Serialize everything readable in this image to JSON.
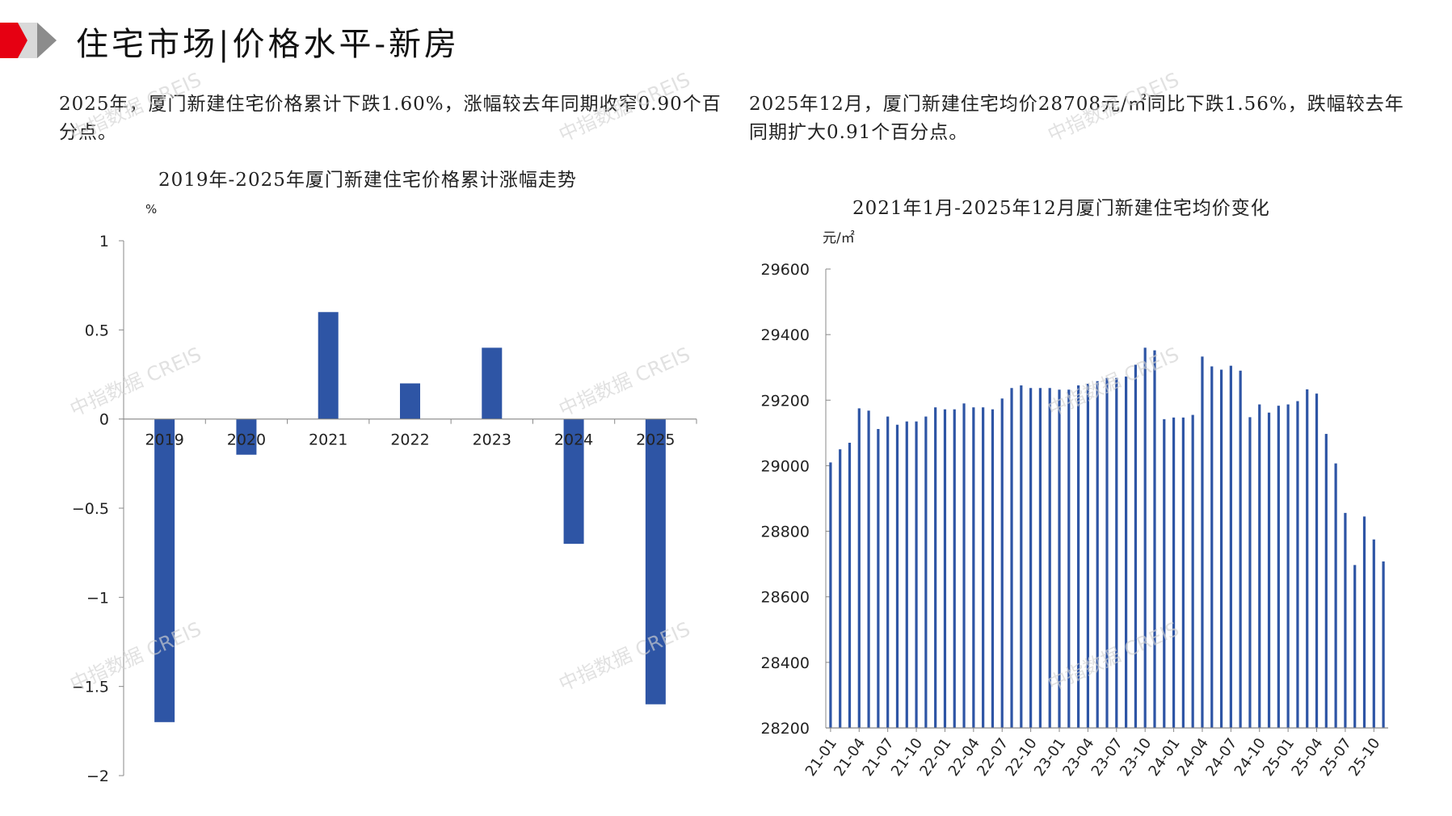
{
  "header": {
    "title": "住宅市场|价格水平-新房",
    "accent_color": "#e60012"
  },
  "paragraphs": {
    "left": "2025年，厦门新建住宅价格累计下跌1.60%，涨幅较去年同期收窄0.90个百分点。",
    "right": "2025年12月，厦门新建住宅均价28708元/㎡同比下跌1.56%，跌幅较去年同期扩大0.91个百分点。"
  },
  "watermark": "中指数据 CREIS",
  "chart_data": [
    {
      "type": "bar",
      "title": "2019年-2025年厦门新建住宅价格累计涨幅走势",
      "ylabel": "%",
      "categories": [
        "2019",
        "2020",
        "2021",
        "2022",
        "2023",
        "2024",
        "2025"
      ],
      "values": [
        -1.7,
        -0.2,
        0.6,
        0.2,
        0.4,
        -0.7,
        -1.6
      ],
      "ylim": [
        -2,
        1
      ],
      "yticks": [
        "1",
        "0.5",
        "0",
        "−0.5",
        "−1",
        "−1.5",
        "−2"
      ],
      "ytick_values": [
        1,
        0.5,
        0,
        -0.5,
        -1,
        -1.5,
        -2
      ],
      "color": "#2e55a5",
      "grid": false
    },
    {
      "type": "bar",
      "title": "2021年1月-2025年12月厦门新建住宅均价变化",
      "ylabel": "元/㎡",
      "ylim": [
        28200,
        29600
      ],
      "yticks": [
        "29600",
        "29400",
        "29200",
        "29000",
        "28800",
        "28600",
        "28400",
        "28200"
      ],
      "ytick_values": [
        29600,
        29400,
        29200,
        29000,
        28800,
        28600,
        28400,
        28200
      ],
      "xtick_labels": [
        "21-01",
        "21-04",
        "21-07",
        "21-10",
        "22-01",
        "22-04",
        "22-07",
        "22-10",
        "23-01",
        "23-04",
        "23-07",
        "23-10",
        "24-01",
        "24-04",
        "24-07",
        "24-10",
        "25-01",
        "25-04",
        "25-07",
        "25-10"
      ],
      "xtick_every": 3,
      "values": [
        29010,
        29050,
        29070,
        29175,
        29168,
        29112,
        29150,
        29125,
        29135,
        29135,
        29150,
        29178,
        29172,
        29172,
        29190,
        29178,
        29178,
        29172,
        29205,
        29237,
        29245,
        29237,
        29237,
        29237,
        29232,
        29232,
        29245,
        29250,
        29258,
        29268,
        29268,
        29272,
        29308,
        29360,
        29352,
        29142,
        29147,
        29147,
        29155,
        29333,
        29303,
        29293,
        29305,
        29290,
        29148,
        29187,
        29162,
        29183,
        29187,
        29197,
        29233,
        29220,
        29097,
        29007,
        28856,
        28697,
        28845,
        28775,
        28708
      ],
      "color": "#2e55a5",
      "grid": false
    }
  ]
}
